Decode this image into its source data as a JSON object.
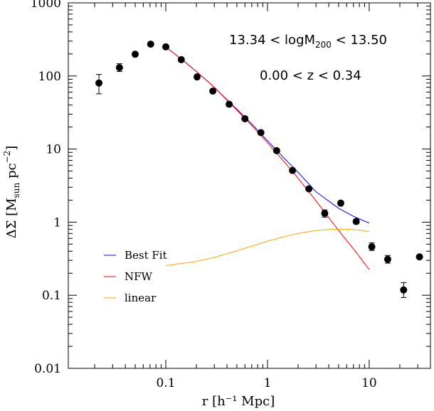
{
  "chart_data": {
    "type": "scatter",
    "xlabel": "r  [h⁻¹ Mpc]",
    "ylabel": "ΔΣ  [M",
    "ylabel_sub": "sun",
    "ylabel_tail": "  pc",
    "ylabel_sup": "−2",
    "ylabel_end": "]",
    "xscale": "log",
    "yscale": "log",
    "xlim": [
      0.011,
      40
    ],
    "ylim": [
      0.01,
      1000
    ],
    "xticks": [
      {
        "value": 0.1,
        "label": "0.1"
      },
      {
        "value": 1,
        "label": "1"
      },
      {
        "value": 10,
        "label": "10"
      }
    ],
    "yticks": [
      {
        "value": 0.01,
        "label": "0.01"
      },
      {
        "value": 0.1,
        "label": "0.1"
      },
      {
        "value": 1,
        "label": "1"
      },
      {
        "value": 10,
        "label": "10"
      },
      {
        "value": 100,
        "label": "100"
      },
      {
        "value": 1000,
        "label": "1000"
      }
    ],
    "annotations": [
      {
        "text": "13.34  <  logM",
        "sub": "200",
        "tail": "  <  13.50"
      },
      {
        "text": "0.00  <  z  <  0.34"
      }
    ],
    "points": [
      {
        "x": 0.022,
        "y": 80,
        "ylo": 57,
        "yhi": 105
      },
      {
        "x": 0.035,
        "y": 130,
        "ylo": 115,
        "yhi": 147
      },
      {
        "x": 0.05,
        "y": 198,
        "ylo": 190,
        "yhi": 207
      },
      {
        "x": 0.071,
        "y": 272,
        "ylo": 262,
        "yhi": 282
      },
      {
        "x": 0.1,
        "y": 250,
        "ylo": 242,
        "yhi": 258
      },
      {
        "x": 0.142,
        "y": 167,
        "ylo": 161,
        "yhi": 173
      },
      {
        "x": 0.203,
        "y": 97,
        "ylo": 93,
        "yhi": 101
      },
      {
        "x": 0.29,
        "y": 62,
        "ylo": 59,
        "yhi": 65
      },
      {
        "x": 0.42,
        "y": 41,
        "ylo": 39,
        "yhi": 43
      },
      {
        "x": 0.6,
        "y": 26,
        "ylo": 25,
        "yhi": 27
      },
      {
        "x": 0.86,
        "y": 16.8,
        "ylo": 16.1,
        "yhi": 17.5
      },
      {
        "x": 1.23,
        "y": 9.5,
        "ylo": 9.0,
        "yhi": 10.0
      },
      {
        "x": 1.76,
        "y": 5.1,
        "ylo": 4.8,
        "yhi": 5.4
      },
      {
        "x": 2.55,
        "y": 2.85,
        "ylo": 2.7,
        "yhi": 3.0
      },
      {
        "x": 3.65,
        "y": 1.32,
        "ylo": 1.17,
        "yhi": 1.47
      },
      {
        "x": 5.25,
        "y": 1.82,
        "ylo": 1.72,
        "yhi": 1.92
      },
      {
        "x": 7.45,
        "y": 1.02,
        "ylo": 0.95,
        "yhi": 1.09
      },
      {
        "x": 10.6,
        "y": 0.46,
        "ylo": 0.41,
        "yhi": 0.52
      },
      {
        "x": 15.2,
        "y": 0.31,
        "ylo": 0.275,
        "yhi": 0.35
      },
      {
        "x": 21.8,
        "y": 0.118,
        "ylo": 0.093,
        "yhi": 0.149
      },
      {
        "x": 31.2,
        "y": 0.335,
        "ylo": 0.318,
        "yhi": 0.352
      }
    ],
    "series": [
      {
        "name": "Best Fit",
        "color": "#0000ff",
        "x": [
          0.1,
          0.15,
          0.2,
          0.3,
          0.5,
          0.7,
          1,
          1.5,
          2,
          3,
          5,
          7,
          10
        ],
        "y": [
          250,
          160,
          115,
          70,
          35,
          22,
          13,
          7.2,
          4.8,
          2.6,
          1.55,
          1.2,
          0.97
        ]
      },
      {
        "name": "NFW",
        "color": "#ff0000",
        "x": [
          0.1,
          0.15,
          0.2,
          0.3,
          0.5,
          0.7,
          1,
          1.5,
          2,
          3,
          5,
          7,
          10
        ],
        "y": [
          250,
          160,
          115,
          70,
          34,
          21,
          12.2,
          6.4,
          4.0,
          1.95,
          0.77,
          0.43,
          0.225
        ]
      },
      {
        "name": "linear",
        "color": "#ffa500",
        "x": [
          0.1,
          0.2,
          0.3,
          0.5,
          0.7,
          1,
          1.5,
          2,
          3,
          4.5,
          6,
          8,
          10
        ],
        "y": [
          0.255,
          0.29,
          0.33,
          0.405,
          0.47,
          0.55,
          0.64,
          0.7,
          0.77,
          0.8,
          0.8,
          0.78,
          0.74
        ]
      }
    ],
    "legend": {
      "position": "bottom-left"
    }
  }
}
